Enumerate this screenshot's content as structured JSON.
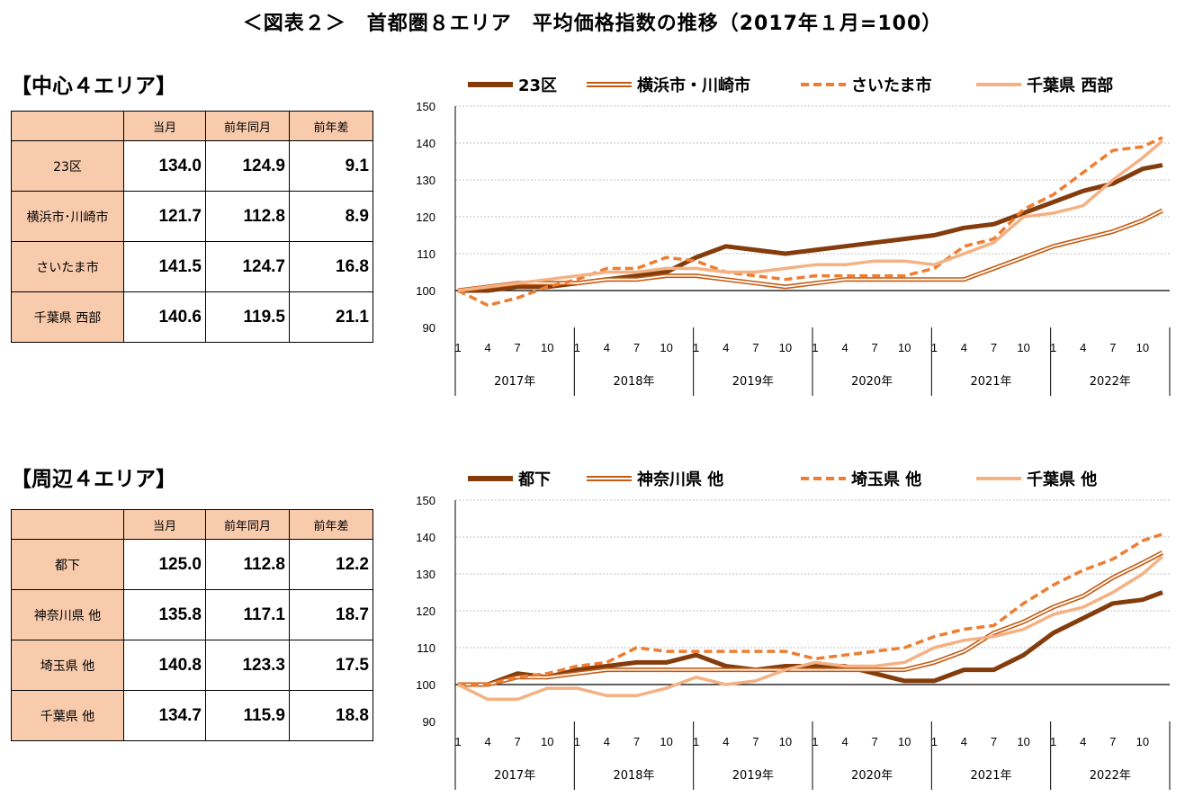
{
  "title": "＜図表２＞　首都圏８エリア　平均価格指数の推移（2017年１月=100）",
  "sections": [
    {
      "heading": "【中心４エリア】",
      "table": {
        "headers": [
          "",
          "当月",
          "前年同月",
          "前年差"
        ],
        "rows": [
          {
            "label": "23区",
            "current": "134.0",
            "prev_year": "124.9",
            "diff": "9.1"
          },
          {
            "label": "横浜市･川崎市",
            "current": "121.7",
            "prev_year": "112.8",
            "diff": "8.9"
          },
          {
            "label": "さいたま市",
            "current": "141.5",
            "prev_year": "124.7",
            "diff": "16.8"
          },
          {
            "label": "千葉県 西部",
            "current": "140.6",
            "prev_year": "119.5",
            "diff": "21.1"
          }
        ]
      }
    },
    {
      "heading": "【周辺４エリア】",
      "table": {
        "headers": [
          "",
          "当月",
          "前年同月",
          "前年差"
        ],
        "rows": [
          {
            "label": "都下",
            "current": "125.0",
            "prev_year": "112.8",
            "diff": "12.2"
          },
          {
            "label": "神奈川県 他",
            "current": "135.8",
            "prev_year": "117.1",
            "diff": "18.7"
          },
          {
            "label": "埼玉県 他",
            "current": "140.8",
            "prev_year": "123.3",
            "diff": "17.5"
          },
          {
            "label": "千葉県 他",
            "current": "134.7",
            "prev_year": "115.9",
            "diff": "18.8"
          }
        ]
      }
    }
  ],
  "chart_data": [
    {
      "type": "line",
      "ylim": [
        90,
        150
      ],
      "yticks": [
        90,
        100,
        110,
        120,
        130,
        140,
        150
      ],
      "month_ticks": [
        "1",
        "4",
        "7",
        "10"
      ],
      "years": [
        "2017年",
        "2018年",
        "2019年",
        "2020年",
        "2021年",
        "2022年"
      ],
      "x": [
        "2017-01",
        "2017-04",
        "2017-07",
        "2017-10",
        "2018-01",
        "2018-04",
        "2018-07",
        "2018-10",
        "2019-01",
        "2019-04",
        "2019-07",
        "2019-10",
        "2020-01",
        "2020-04",
        "2020-07",
        "2020-10",
        "2021-01",
        "2021-04",
        "2021-07",
        "2021-10",
        "2022-01",
        "2022-04",
        "2022-07",
        "2022-10",
        "2022-12"
      ],
      "legend_position": "top",
      "series": [
        {
          "name": "23区",
          "color": "#843C0C",
          "style": "thick",
          "values": [
            100,
            100,
            101,
            101,
            102,
            103,
            104,
            105,
            109,
            112,
            111,
            110,
            111,
            112,
            113,
            114,
            115,
            117,
            118,
            121,
            124,
            127,
            129,
            133,
            134
          ]
        },
        {
          "name": "横浜市・川崎市",
          "color": "#C55A11",
          "style": "double",
          "values": [
            100,
            101,
            102,
            102,
            102,
            103,
            103,
            104,
            104,
            103,
            102,
            101,
            102,
            103,
            103,
            103,
            103,
            103,
            106,
            109,
            112,
            114,
            116,
            119,
            121.7
          ]
        },
        {
          "name": "さいたま市",
          "color": "#ED7D31",
          "style": "dashed",
          "values": [
            100,
            96,
            98,
            101,
            103,
            106,
            106,
            109,
            108,
            105,
            104,
            103,
            104,
            104,
            104,
            104,
            106,
            112,
            114,
            122,
            126,
            132,
            138,
            139,
            141.5
          ]
        },
        {
          "name": "千葉県 西部",
          "color": "#F4B183",
          "style": "solid",
          "values": [
            100,
            101,
            102,
            103,
            104,
            105,
            105,
            106,
            106,
            105,
            105,
            106,
            107,
            107,
            108,
            108,
            107,
            110,
            113,
            120,
            121,
            123,
            130,
            136,
            140.6
          ]
        }
      ]
    },
    {
      "type": "line",
      "ylim": [
        90,
        150
      ],
      "yticks": [
        90,
        100,
        110,
        120,
        130,
        140,
        150
      ],
      "month_ticks": [
        "1",
        "4",
        "7",
        "10"
      ],
      "years": [
        "2017年",
        "2018年",
        "2019年",
        "2020年",
        "2021年",
        "2022年"
      ],
      "x": [
        "2017-01",
        "2017-04",
        "2017-07",
        "2017-10",
        "2018-01",
        "2018-04",
        "2018-07",
        "2018-10",
        "2019-01",
        "2019-04",
        "2019-07",
        "2019-10",
        "2020-01",
        "2020-04",
        "2020-07",
        "2020-10",
        "2021-01",
        "2021-04",
        "2021-07",
        "2021-10",
        "2022-01",
        "2022-04",
        "2022-07",
        "2022-10",
        "2022-12"
      ],
      "legend_position": "top",
      "series": [
        {
          "name": "都下",
          "color": "#843C0C",
          "style": "thick",
          "values": [
            100,
            100,
            103,
            102,
            104,
            105,
            106,
            106,
            108,
            105,
            104,
            105,
            105,
            105,
            103,
            101,
            101,
            104,
            104,
            108,
            114,
            118,
            122,
            123,
            125
          ]
        },
        {
          "name": "神奈川県 他",
          "color": "#C55A11",
          "style": "double",
          "values": [
            100,
            100,
            102,
            102,
            103,
            104,
            104,
            104,
            104,
            104,
            104,
            104,
            104,
            104,
            104,
            104,
            106,
            109,
            114,
            117,
            121,
            124,
            129,
            133,
            135.8
          ]
        },
        {
          "name": "埼玉県 他",
          "color": "#ED7D31",
          "style": "dashed",
          "values": [
            100,
            100,
            102,
            103,
            105,
            106,
            110,
            109,
            109,
            109,
            109,
            109,
            107,
            108,
            109,
            110,
            113,
            115,
            116,
            122,
            127,
            131,
            134,
            139,
            140.8
          ]
        },
        {
          "name": "千葉県 他",
          "color": "#F4B183",
          "style": "solid",
          "values": [
            100,
            96,
            96,
            99,
            99,
            97,
            97,
            99,
            102,
            100,
            101,
            104,
            106,
            105,
            105,
            106,
            110,
            112,
            113,
            115,
            119,
            121,
            125,
            130,
            134.7
          ]
        }
      ]
    }
  ]
}
